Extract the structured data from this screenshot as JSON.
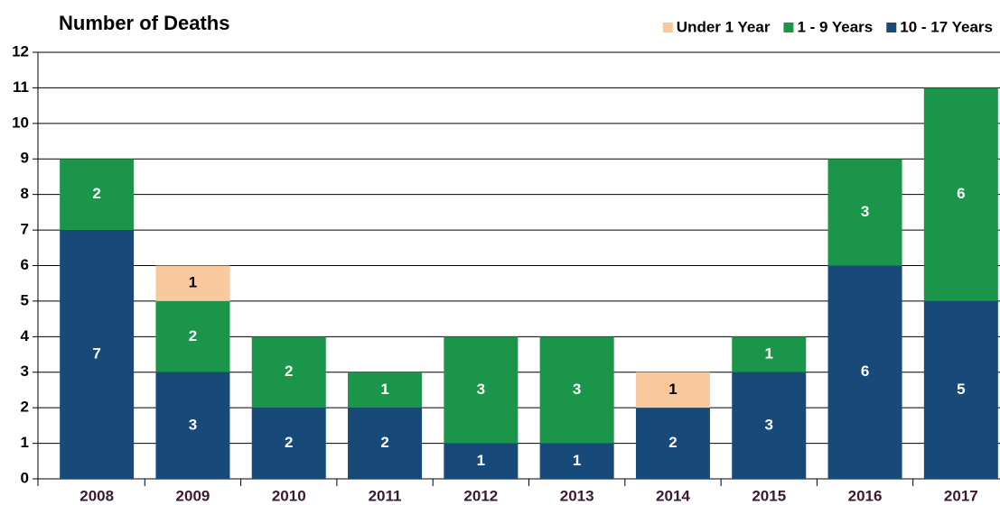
{
  "chart_data": {
    "type": "stacked_bar",
    "title": "Number of Deaths",
    "categories": [
      "2008",
      "2009",
      "2010",
      "2011",
      "2012",
      "2013",
      "2014",
      "2015",
      "2016",
      "2017"
    ],
    "series": [
      {
        "name": "Under 1 Year",
        "color": "#f9c99d",
        "label_color": "#000000",
        "values": [
          0,
          1,
          0,
          0,
          0,
          0,
          1,
          0,
          0,
          0
        ]
      },
      {
        "name": "1 - 9 Years",
        "color": "#1b9549",
        "label_color": "#ffffff",
        "values": [
          2,
          2,
          2,
          1,
          3,
          3,
          0,
          1,
          3,
          6
        ]
      },
      {
        "name": "10 - 17 Years",
        "color": "#174a79",
        "label_color": "#ffffff",
        "values": [
          7,
          3,
          2,
          2,
          1,
          1,
          2,
          3,
          6,
          5
        ]
      }
    ],
    "ylim": [
      0,
      12
    ],
    "yticks": [
      0,
      1,
      2,
      3,
      4,
      5,
      6,
      7,
      8,
      9,
      10,
      11,
      12
    ],
    "grid": true,
    "legend": "top-right"
  }
}
